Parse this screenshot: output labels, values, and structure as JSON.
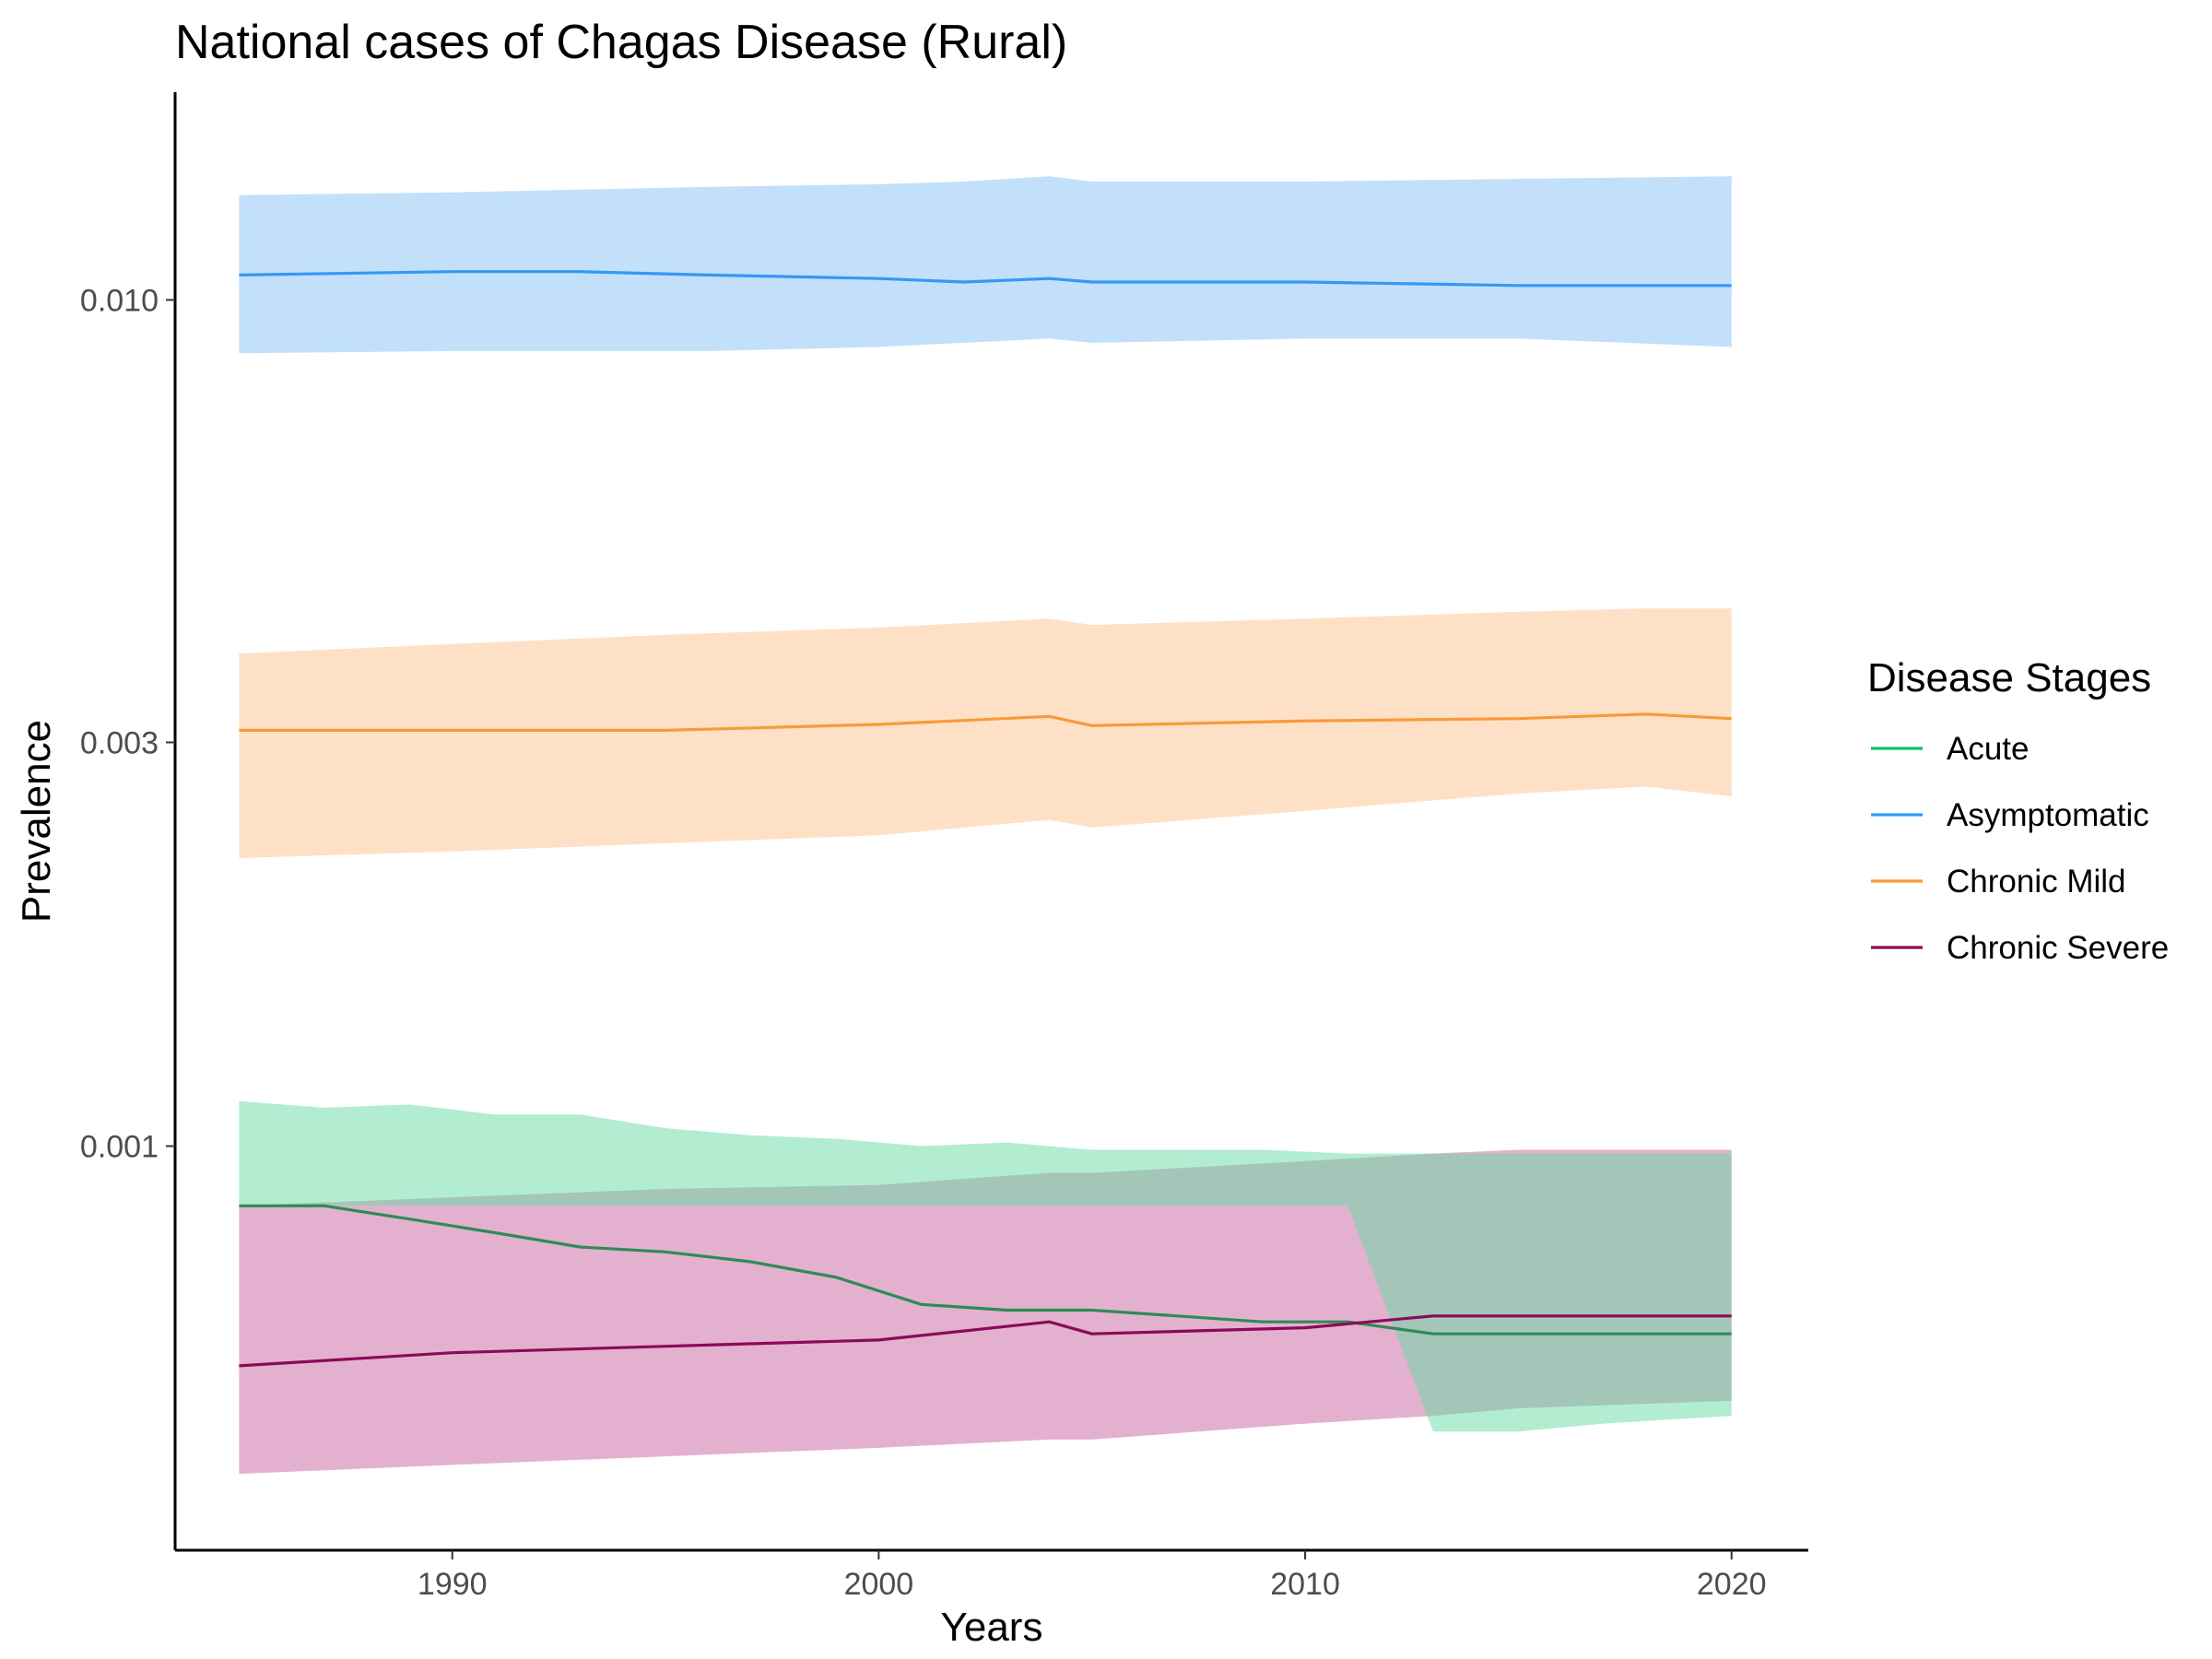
{
  "chart_data": {
    "type": "area",
    "title": "National cases of Chagas Disease (Rural)",
    "xlabel": "Years",
    "ylabel": "Prevalence",
    "yscale": "log",
    "xlim": [
      1983.5,
      2021.8
    ],
    "ylim": [
      0.000333,
      0.0176
    ],
    "x_ticks": [
      1990,
      2000,
      2010,
      2020
    ],
    "x_tick_labels": [
      "1990",
      "2000",
      "2010",
      "2020"
    ],
    "y_ticks": [
      0.001,
      0.003,
      0.01
    ],
    "y_tick_labels": [
      "0.001",
      "0.003",
      "0.010"
    ],
    "grid": false,
    "legend": {
      "title": "Disease Stages",
      "position": "right"
    },
    "series": [
      {
        "name": "Acute",
        "line_color": "#2e8b57",
        "legend_color": "#00c26b",
        "band_color": "#66dca4",
        "band_opacity": 0.5,
        "x": [
          1985,
          1987,
          1989,
          1991,
          1993,
          1995,
          1997,
          1999,
          2001,
          2003,
          2005,
          2007,
          2009,
          2011,
          2013,
          2015,
          2017,
          2020
        ],
        "y": [
          0.00085,
          0.00085,
          0.00082,
          0.00079,
          0.00076,
          0.00075,
          0.00073,
          0.0007,
          0.00065,
          0.00064,
          0.00064,
          0.00063,
          0.00062,
          0.00062,
          0.0006,
          0.0006,
          0.0006,
          0.0006
        ],
        "lower": [
          0.00085,
          0.00085,
          0.00085,
          0.00085,
          0.00085,
          0.00085,
          0.00085,
          0.00085,
          0.00085,
          0.00085,
          0.00085,
          0.00085,
          0.00085,
          0.00085,
          0.00046,
          0.00046,
          0.00047,
          0.00048
        ],
        "upper": [
          0.00113,
          0.00111,
          0.00112,
          0.00109,
          0.00109,
          0.00105,
          0.00103,
          0.00102,
          0.001,
          0.00101,
          0.00099,
          0.00099,
          0.00099,
          0.00098,
          0.00098,
          0.00098,
          0.00098,
          0.00098
        ]
      },
      {
        "name": "Asymptomatic",
        "line_color": "#3399f3",
        "legend_color": "#3399f3",
        "band_color": "#85c1f5",
        "band_opacity": 0.5,
        "x": [
          1985,
          1990,
          1993,
          1996,
          2000,
          2002,
          2004,
          2005,
          2010,
          2015,
          2020
        ],
        "y": [
          0.0107,
          0.0108,
          0.0108,
          0.0107,
          0.0106,
          0.0105,
          0.0106,
          0.0105,
          0.0105,
          0.0104,
          0.0104
        ],
        "lower": [
          0.00865,
          0.0087,
          0.0087,
          0.0087,
          0.0088,
          0.0089,
          0.009,
          0.0089,
          0.009,
          0.009,
          0.0088
        ],
        "upper": [
          0.0133,
          0.0134,
          0.0135,
          0.0136,
          0.0137,
          0.0138,
          0.014,
          0.0138,
          0.0138,
          0.0139,
          0.014
        ]
      },
      {
        "name": "Chronic Mild",
        "line_color": "#f99a3a",
        "legend_color": "#f99a3a",
        "band_color": "#fdc28d",
        "band_opacity": 0.5,
        "x": [
          1985,
          1990,
          1995,
          2000,
          2004,
          2005,
          2010,
          2015,
          2018,
          2020
        ],
        "y": [
          0.0031,
          0.0031,
          0.0031,
          0.00315,
          0.00322,
          0.00314,
          0.00318,
          0.0032,
          0.00324,
          0.0032
        ],
        "lower": [
          0.00219,
          0.00223,
          0.00228,
          0.00233,
          0.00243,
          0.00238,
          0.00249,
          0.00261,
          0.00266,
          0.00259
        ],
        "upper": [
          0.00382,
          0.00392,
          0.00402,
          0.0041,
          0.0042,
          0.00413,
          0.0042,
          0.00428,
          0.00432,
          0.00432
        ]
      },
      {
        "name": "Chronic Severe",
        "line_color": "#8b0a5a",
        "legend_color": "#8b0a5a",
        "band_color": "#c864a0",
        "band_opacity": 0.5,
        "x": [
          1985,
          1990,
          1995,
          2000,
          2004,
          2005,
          2010,
          2013,
          2015,
          2020
        ],
        "y": [
          0.00055,
          0.00057,
          0.00058,
          0.00059,
          0.00062,
          0.0006,
          0.00061,
          0.00063,
          0.00063,
          0.00063
        ],
        "lower": [
          0.00041,
          0.00042,
          0.00043,
          0.00044,
          0.00045,
          0.00045,
          0.00047,
          0.00048,
          0.00049,
          0.0005
        ],
        "upper": [
          0.00085,
          0.00087,
          0.00089,
          0.0009,
          0.00093,
          0.00093,
          0.00096,
          0.00098,
          0.00099,
          0.00099
        ]
      }
    ]
  }
}
